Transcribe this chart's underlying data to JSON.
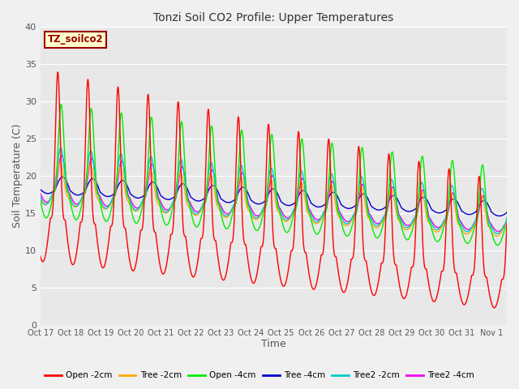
{
  "title": "Tonzi Soil CO2 Profile: Upper Temperatures",
  "xlabel": "Time",
  "ylabel": "Soil Temperature (C)",
  "ylim": [
    0,
    40
  ],
  "yticks": [
    0,
    5,
    10,
    15,
    20,
    25,
    30,
    35,
    40
  ],
  "plot_bg": "#e8e8e8",
  "fig_bg": "#f0f0f0",
  "text_color": "#555555",
  "annotation_text": "TZ_soilco2",
  "annotation_bg": "#ffffcc",
  "annotation_border": "#990000",
  "series": [
    {
      "label": "Open -2cm",
      "color": "#ff0000",
      "lw": 1.0
    },
    {
      "label": "Tree -2cm",
      "color": "#ffaa00",
      "lw": 1.0
    },
    {
      "label": "Open -4cm",
      "color": "#00ee00",
      "lw": 1.0
    },
    {
      "label": "Tree -4cm",
      "color": "#0000cc",
      "lw": 1.0
    },
    {
      "label": "Tree2 -2cm",
      "color": "#00cccc",
      "lw": 1.0
    },
    {
      "label": "Tree2 -4cm",
      "color": "#ee00ee",
      "lw": 1.0
    }
  ],
  "x_tick_labels": [
    "Oct 17",
    "Oct 18",
    "Oct 19",
    "Oct 20",
    "Oct 21",
    "Oct 22",
    "Oct 23",
    "Oct 24",
    "Oct 25",
    "Oct 26",
    "Oct 27",
    "Oct 28",
    "Oct 29",
    "Oct 30",
    "Oct 31",
    "Nov 1"
  ],
  "num_days": 15.5,
  "pts_per_day": 240,
  "open2": {
    "base_s": 14.5,
    "base_e": 6.0,
    "amp_s": 20.0,
    "amp_e": 13.0,
    "sharpness": 4
  },
  "tree2": {
    "base_s": 17.5,
    "base_e": 13.0,
    "amp_s": 4.5,
    "amp_e": 4.0,
    "sharpness": 2
  },
  "open4": {
    "base_s": 18.0,
    "base_e": 13.0,
    "amp_s": 12.0,
    "amp_e": 8.0,
    "sharpness": 3
  },
  "tree4": {
    "base_s": 18.2,
    "base_e": 15.0,
    "amp_s": 1.8,
    "amp_e": 1.5,
    "sharpness": 1
  },
  "tree22": {
    "base_s": 18.0,
    "base_e": 13.5,
    "amp_s": 6.0,
    "amp_e": 4.5,
    "sharpness": 2
  },
  "tree24": {
    "base_s": 18.0,
    "base_e": 13.5,
    "amp_s": 5.0,
    "amp_e": 3.5,
    "sharpness": 2
  }
}
